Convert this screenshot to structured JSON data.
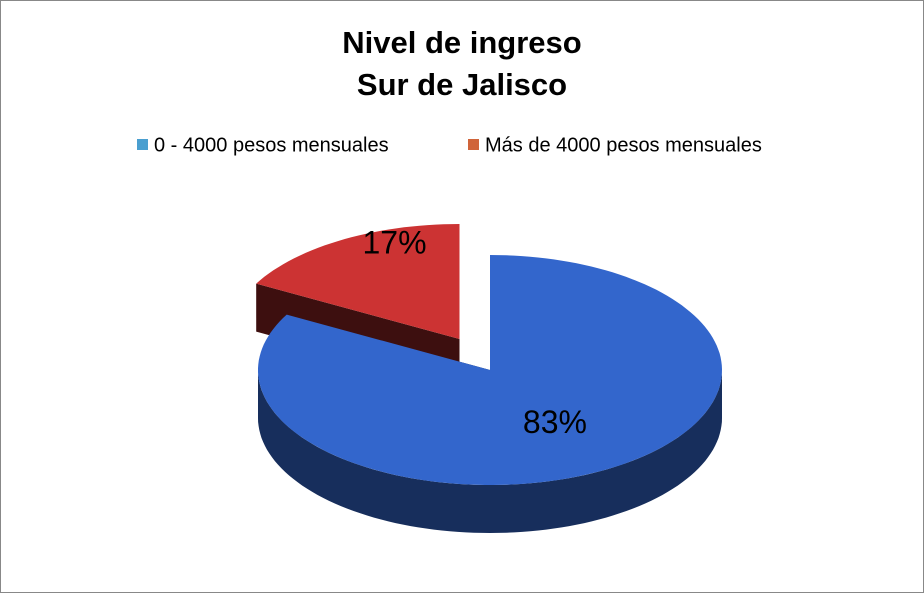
{
  "chart_data": {
    "type": "pie3d",
    "title": "Nivel de ingreso",
    "subtitle": "Sur de Jalisco",
    "categories": [
      "0 - 4000 pesos mensuales",
      "Más de 4000 pesos mensuales"
    ],
    "values": [
      83,
      17
    ],
    "value_labels": [
      "83%",
      "17%"
    ],
    "colors": [
      "#3366cc",
      "#cc3333"
    ],
    "legend_colors": [
      "#4a9fd0",
      "#d0643a"
    ],
    "exploded": [
      false,
      true
    ],
    "legend": "top"
  }
}
